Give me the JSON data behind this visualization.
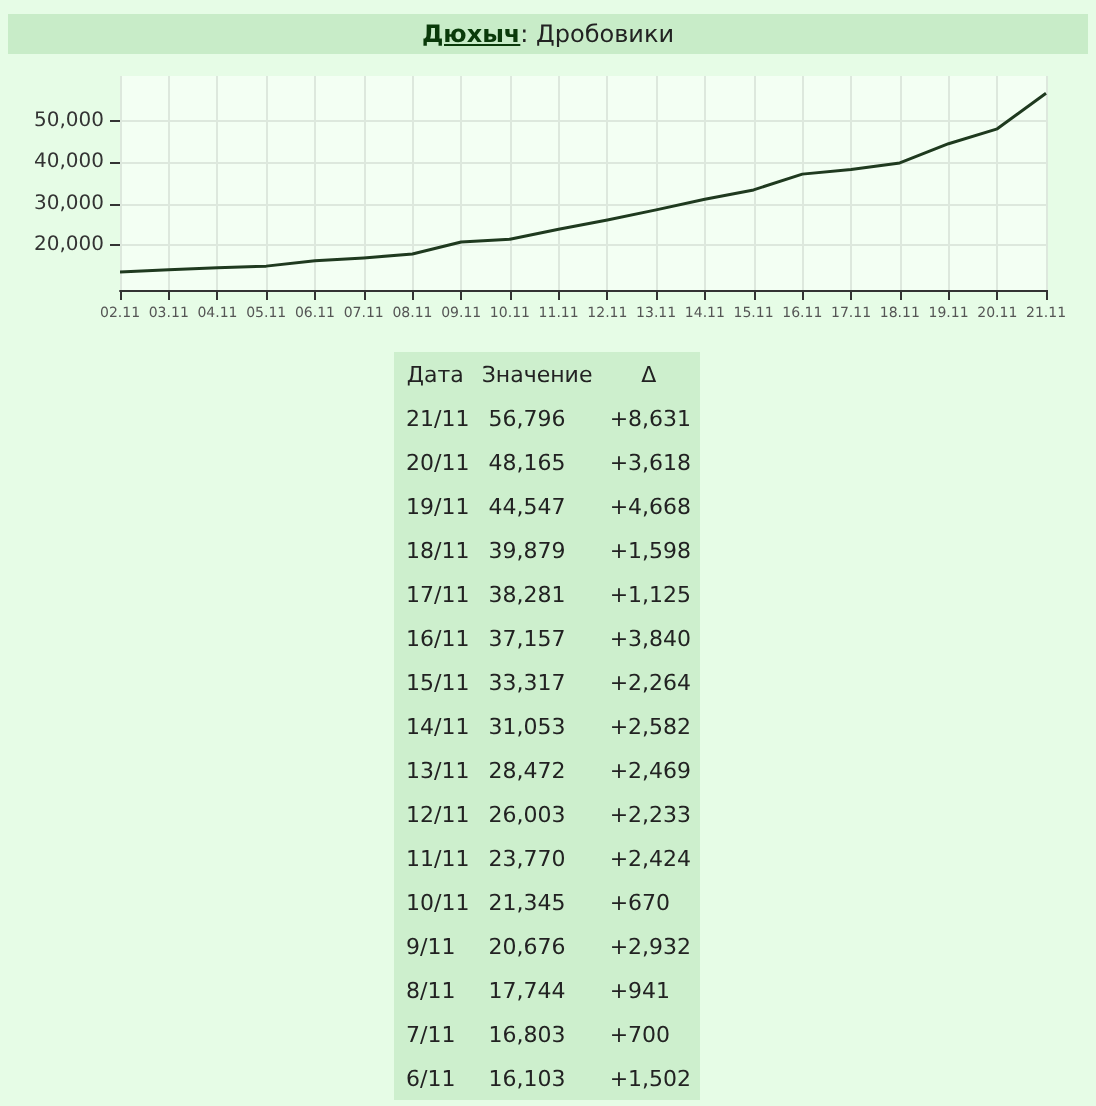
{
  "chart_data": {
    "type": "line",
    "title": "Дюхыч: Дробовики",
    "categories": [
      "02.11",
      "03.11",
      "04.11",
      "05.11",
      "06.11",
      "07.11",
      "08.11",
      "09.11",
      "10.11",
      "11.11",
      "12.11",
      "13.11",
      "14.11",
      "15.11",
      "16.11",
      "17.11",
      "18.11",
      "19.11",
      "20.11",
      "21.11"
    ],
    "values": [
      13400,
      13900,
      14400,
      14800,
      16103,
      16803,
      17744,
      20676,
      21345,
      23770,
      26003,
      28472,
      31053,
      33317,
      37157,
      38281,
      39879,
      44547,
      48165,
      56796
    ],
    "color": "#1f3a1f",
    "ylim": [
      9000,
      61000
    ],
    "yticks": [
      {
        "value": 20000,
        "label": "20,000"
      },
      {
        "value": 30000,
        "label": "30,000"
      },
      {
        "value": 40000,
        "label": "40,000"
      },
      {
        "value": 50000,
        "label": "50,000"
      }
    ],
    "grid": true,
    "marker": "none",
    "line_style": "solid",
    "annotations": [
      "Дата",
      "Значение",
      "Δ",
      "21/11",
      "56,796",
      "+8,631",
      "20/11",
      "48,165",
      "+3,618",
      "19/11",
      "44,547",
      "+4,668",
      "18/11",
      "39,879",
      "+1,598",
      "17/11",
      "38,281",
      "+1,125",
      "16/11",
      "37,157",
      "+3,840",
      "15/11",
      "33,317",
      "+2,264",
      "14/11",
      "31,053",
      "+2,582",
      "13/11",
      "28,472",
      "+2,469",
      "12/11",
      "26,003",
      "+2,233",
      "11/11",
      "23,770",
      "+2,424",
      "10/11",
      "21,345",
      "+670",
      "9/11",
      "20,676",
      "+2,932",
      "8/11",
      "17,744",
      "+941",
      "7/11",
      "16,803",
      "+700",
      "6/11",
      "16,103",
      "+1,502"
    ]
  }
}
